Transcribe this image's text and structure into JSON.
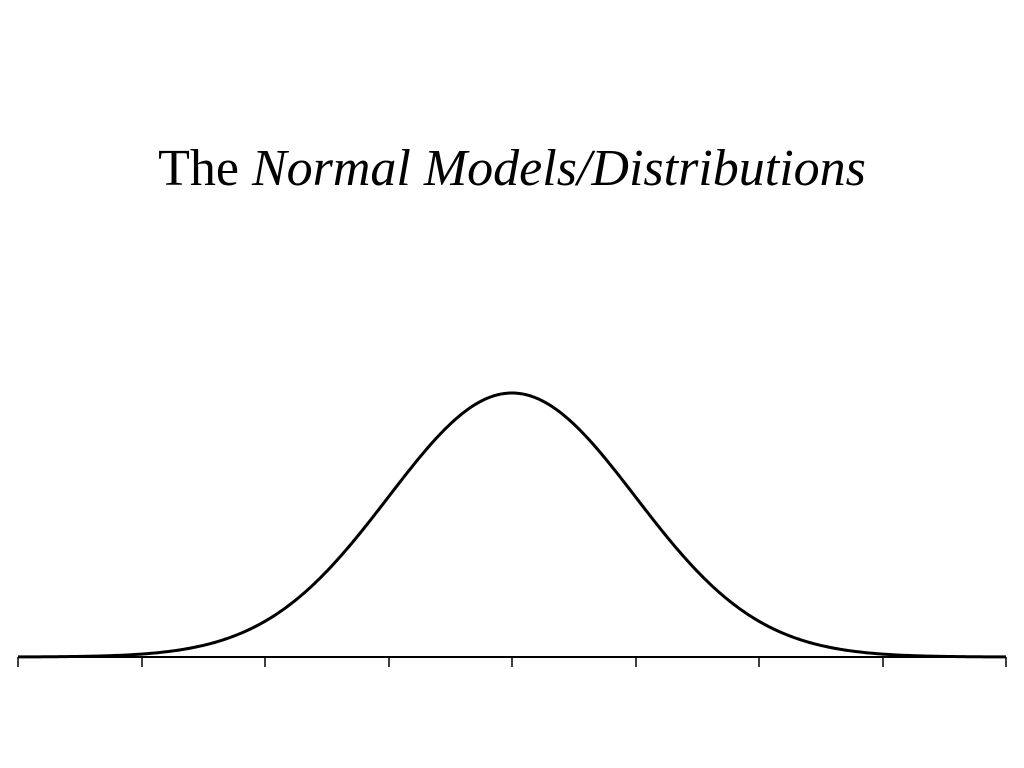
{
  "slide": {
    "title_prefix": "The",
    "title_emphasis": "Normal Models/Distributions"
  },
  "colors": {
    "background": "#ffffff",
    "ink": "#000000"
  },
  "chart_data": {
    "type": "line",
    "title": "",
    "xlabel": "",
    "ylabel": "",
    "distribution": "normal",
    "mean": 0,
    "sd": 1,
    "xlim": [
      -4,
      4
    ],
    "ylim": [
      0,
      0.4
    ],
    "x_ticks": [
      -4,
      -3,
      -2,
      -1,
      0,
      1,
      2,
      3,
      4
    ],
    "tick_labels_visible": false,
    "grid": false,
    "legend": "none"
  }
}
